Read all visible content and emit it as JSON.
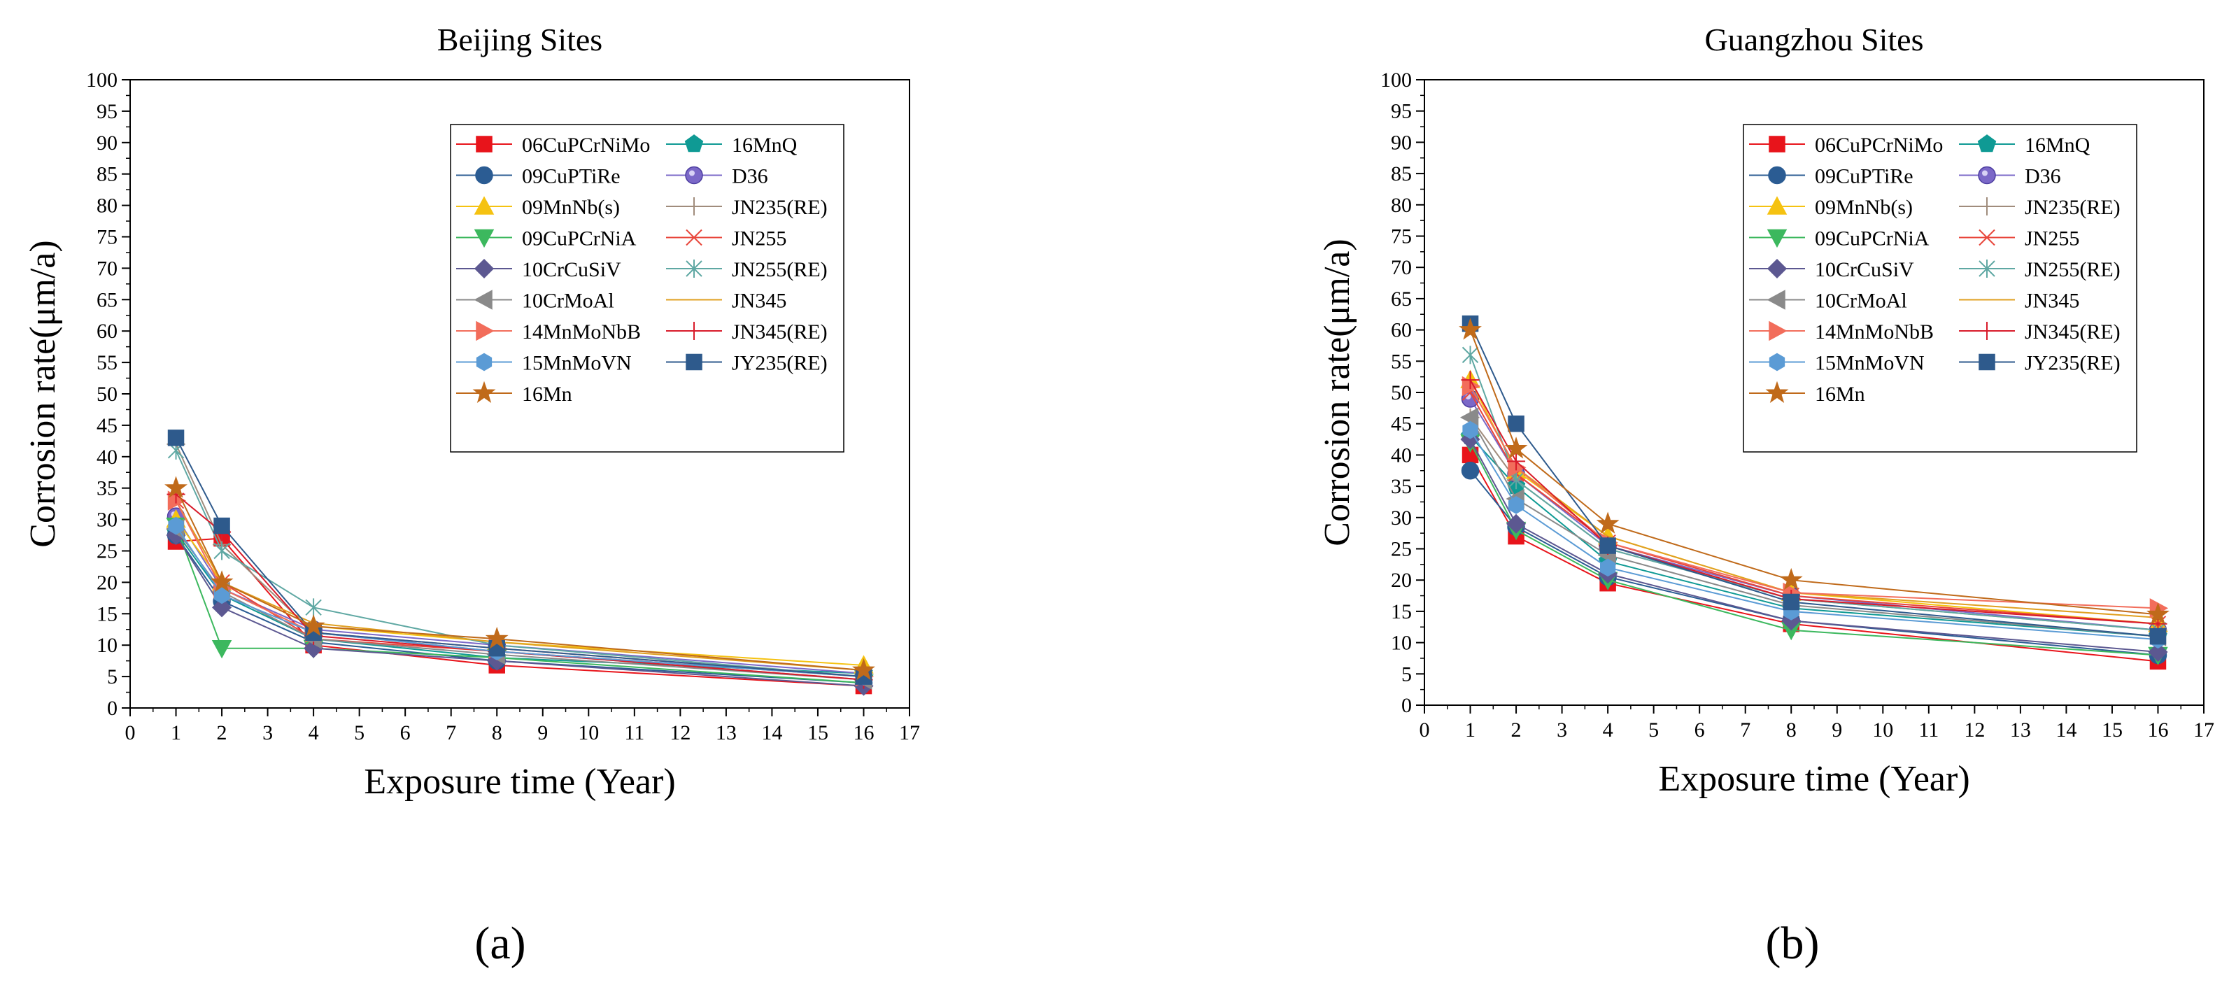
{
  "figure_labels": [
    "(a)",
    "(b)"
  ],
  "chart_data": [
    {
      "type": "line",
      "title": "Beijing Sites",
      "xlabel": "Exposure time (Year)",
      "ylabel": "Corrosion rate(μm/a)",
      "xlim": [
        0,
        17
      ],
      "ylim": [
        0,
        100
      ],
      "xticks": [
        0,
        1,
        2,
        3,
        4,
        5,
        6,
        7,
        8,
        9,
        10,
        11,
        12,
        13,
        14,
        15,
        16,
        17
      ],
      "yticks": [
        0,
        5,
        10,
        15,
        20,
        25,
        30,
        35,
        40,
        45,
        50,
        55,
        60,
        65,
        70,
        75,
        80,
        85,
        90,
        95,
        100
      ],
      "legend_position": "top-right",
      "x": [
        1,
        2,
        4,
        8,
        16
      ],
      "series": [
        {
          "name": "06CuPCrNiMo",
          "color": "#e8141b",
          "marker": "square",
          "values": [
            26.5,
            27,
            10,
            6.8,
            3.5
          ]
        },
        {
          "name": "16MnQ",
          "color": "#0f9a94",
          "marker": "pentagon",
          "values": [
            28,
            18,
            11,
            8,
            5.5
          ]
        },
        {
          "name": "09CuPTiRe",
          "color": "#2b5c93",
          "marker": "circle",
          "values": [
            27.5,
            17,
            10.5,
            7.5,
            4
          ]
        },
        {
          "name": "D36",
          "color": "#7b68c8",
          "marker": "circle-dot",
          "values": [
            30.5,
            19,
            12.5,
            10,
            5.5
          ]
        },
        {
          "name": "09MnNb(s)",
          "color": "#f5c211",
          "marker": "triangle-up",
          "values": [
            30,
            20,
            13,
            10.5,
            6.8
          ]
        },
        {
          "name": "JN235(RE)",
          "color": "#a08c7c",
          "marker": "plus",
          "values": [
            42,
            26,
            12,
            9,
            4.5
          ]
        },
        {
          "name": "09CuPCrNiA",
          "color": "#3cb85e",
          "marker": "triangle-down",
          "values": [
            29,
            9.5,
            9.5,
            8,
            4
          ]
        },
        {
          "name": "JN255",
          "color": "#e8463b",
          "marker": "cross",
          "values": [
            33,
            20,
            11,
            9,
            5
          ]
        },
        {
          "name": "10CrCuSiV",
          "color": "#5c5891",
          "marker": "diamond",
          "values": [
            27.5,
            16,
            9.5,
            7.5,
            3.5
          ]
        },
        {
          "name": "JN255(RE)",
          "color": "#5fa8a3",
          "marker": "asterisk",
          "values": [
            41,
            25,
            16,
            10,
            5
          ]
        },
        {
          "name": "10CrMoAl",
          "color": "#8a8a8a",
          "marker": "triangle-left",
          "values": [
            28.5,
            18.5,
            11,
            8.5,
            4.5
          ]
        },
        {
          "name": "JN345",
          "color": "#e0a020",
          "marker": "none",
          "values": [
            33,
            20,
            13.5,
            10.5,
            6
          ]
        },
        {
          "name": "14MnMoNbB",
          "color": "#f26d5b",
          "marker": "triangle-right",
          "values": [
            33,
            19,
            12,
            9.5,
            5
          ]
        },
        {
          "name": "JN345(RE)",
          "color": "#d81b2a",
          "marker": "plus",
          "values": [
            34,
            28,
            11.5,
            9,
            4.5
          ]
        },
        {
          "name": "15MnMoVN",
          "color": "#5b9bd5",
          "marker": "hexagon",
          "values": [
            29,
            18,
            12,
            9,
            5
          ]
        },
        {
          "name": "JY235(RE)",
          "color": "#2e5a8c",
          "marker": "square",
          "values": [
            43,
            29,
            12,
            9.5,
            5
          ]
        },
        {
          "name": "16Mn",
          "color": "#c06a1a",
          "marker": "star",
          "values": [
            35,
            20,
            13,
            11,
            6
          ]
        }
      ]
    },
    {
      "type": "line",
      "title": "Guangzhou Sites",
      "xlabel": "Exposure time (Year)",
      "ylabel": "Corrosion rate(μm/a)",
      "xlim": [
        0,
        17
      ],
      "ylim": [
        0,
        100
      ],
      "xticks": [
        0,
        1,
        2,
        3,
        4,
        5,
        6,
        7,
        8,
        9,
        10,
        11,
        12,
        13,
        14,
        15,
        16,
        17
      ],
      "yticks": [
        0,
        5,
        10,
        15,
        20,
        25,
        30,
        35,
        40,
        45,
        50,
        55,
        60,
        65,
        70,
        75,
        80,
        85,
        90,
        95,
        100
      ],
      "legend_position": "top-right",
      "x": [
        1,
        2,
        4,
        8,
        16
      ],
      "series": [
        {
          "name": "06CuPCrNiMo",
          "color": "#e8141b",
          "marker": "square",
          "values": [
            40,
            27,
            19.5,
            13,
            7
          ]
        },
        {
          "name": "16MnQ",
          "color": "#0f9a94",
          "marker": "pentagon",
          "values": [
            43,
            35,
            23,
            15.5,
            11
          ]
        },
        {
          "name": "09CuPTiRe",
          "color": "#2b5c93",
          "marker": "circle",
          "values": [
            37.5,
            28.5,
            20.5,
            13.5,
            8
          ]
        },
        {
          "name": "D36",
          "color": "#7b68c8",
          "marker": "circle-dot",
          "values": [
            49,
            37,
            25.5,
            17.5,
            12
          ]
        },
        {
          "name": "09MnNb(s)",
          "color": "#f5c211",
          "marker": "triangle-up",
          "values": [
            52,
            37.5,
            27,
            18,
            13
          ]
        },
        {
          "name": "JN235(RE)",
          "color": "#a08c7c",
          "marker": "plus",
          "values": [
            46,
            36,
            25,
            17,
            12
          ]
        },
        {
          "name": "09CuPCrNiA",
          "color": "#3cb85e",
          "marker": "triangle-down",
          "values": [
            42,
            28,
            20,
            12,
            8
          ]
        },
        {
          "name": "JN255",
          "color": "#e8463b",
          "marker": "cross",
          "values": [
            50,
            37,
            26,
            17.5,
            13
          ]
        },
        {
          "name": "10CrCuSiV",
          "color": "#5c5891",
          "marker": "diamond",
          "values": [
            42.5,
            29,
            21,
            13.5,
            8.5
          ]
        },
        {
          "name": "JN255(RE)",
          "color": "#5fa8a3",
          "marker": "asterisk",
          "values": [
            56,
            36,
            25,
            17,
            12
          ]
        },
        {
          "name": "10CrMoAl",
          "color": "#8a8a8a",
          "marker": "triangle-left",
          "values": [
            46,
            33,
            24,
            16,
            11
          ]
        },
        {
          "name": "JN345",
          "color": "#e0a020",
          "marker": "none",
          "values": [
            51,
            38,
            27,
            18,
            14
          ]
        },
        {
          "name": "14MnMoNbB",
          "color": "#f26d5b",
          "marker": "triangle-right",
          "values": [
            51,
            38,
            26,
            18,
            15.5
          ]
        },
        {
          "name": "JN345(RE)",
          "color": "#d81b2a",
          "marker": "plus",
          "values": [
            52,
            39,
            25.5,
            17,
            13
          ]
        },
        {
          "name": "15MnMoVN",
          "color": "#5b9bd5",
          "marker": "hexagon",
          "values": [
            44,
            32,
            22,
            15,
            10.5
          ]
        },
        {
          "name": "JY235(RE)",
          "color": "#2e5a8c",
          "marker": "square",
          "values": [
            61,
            45,
            25.5,
            16.5,
            11
          ]
        },
        {
          "name": "16Mn",
          "color": "#c06a1a",
          "marker": "star",
          "values": [
            60,
            41,
            29,
            20,
            14.5
          ]
        }
      ]
    }
  ]
}
